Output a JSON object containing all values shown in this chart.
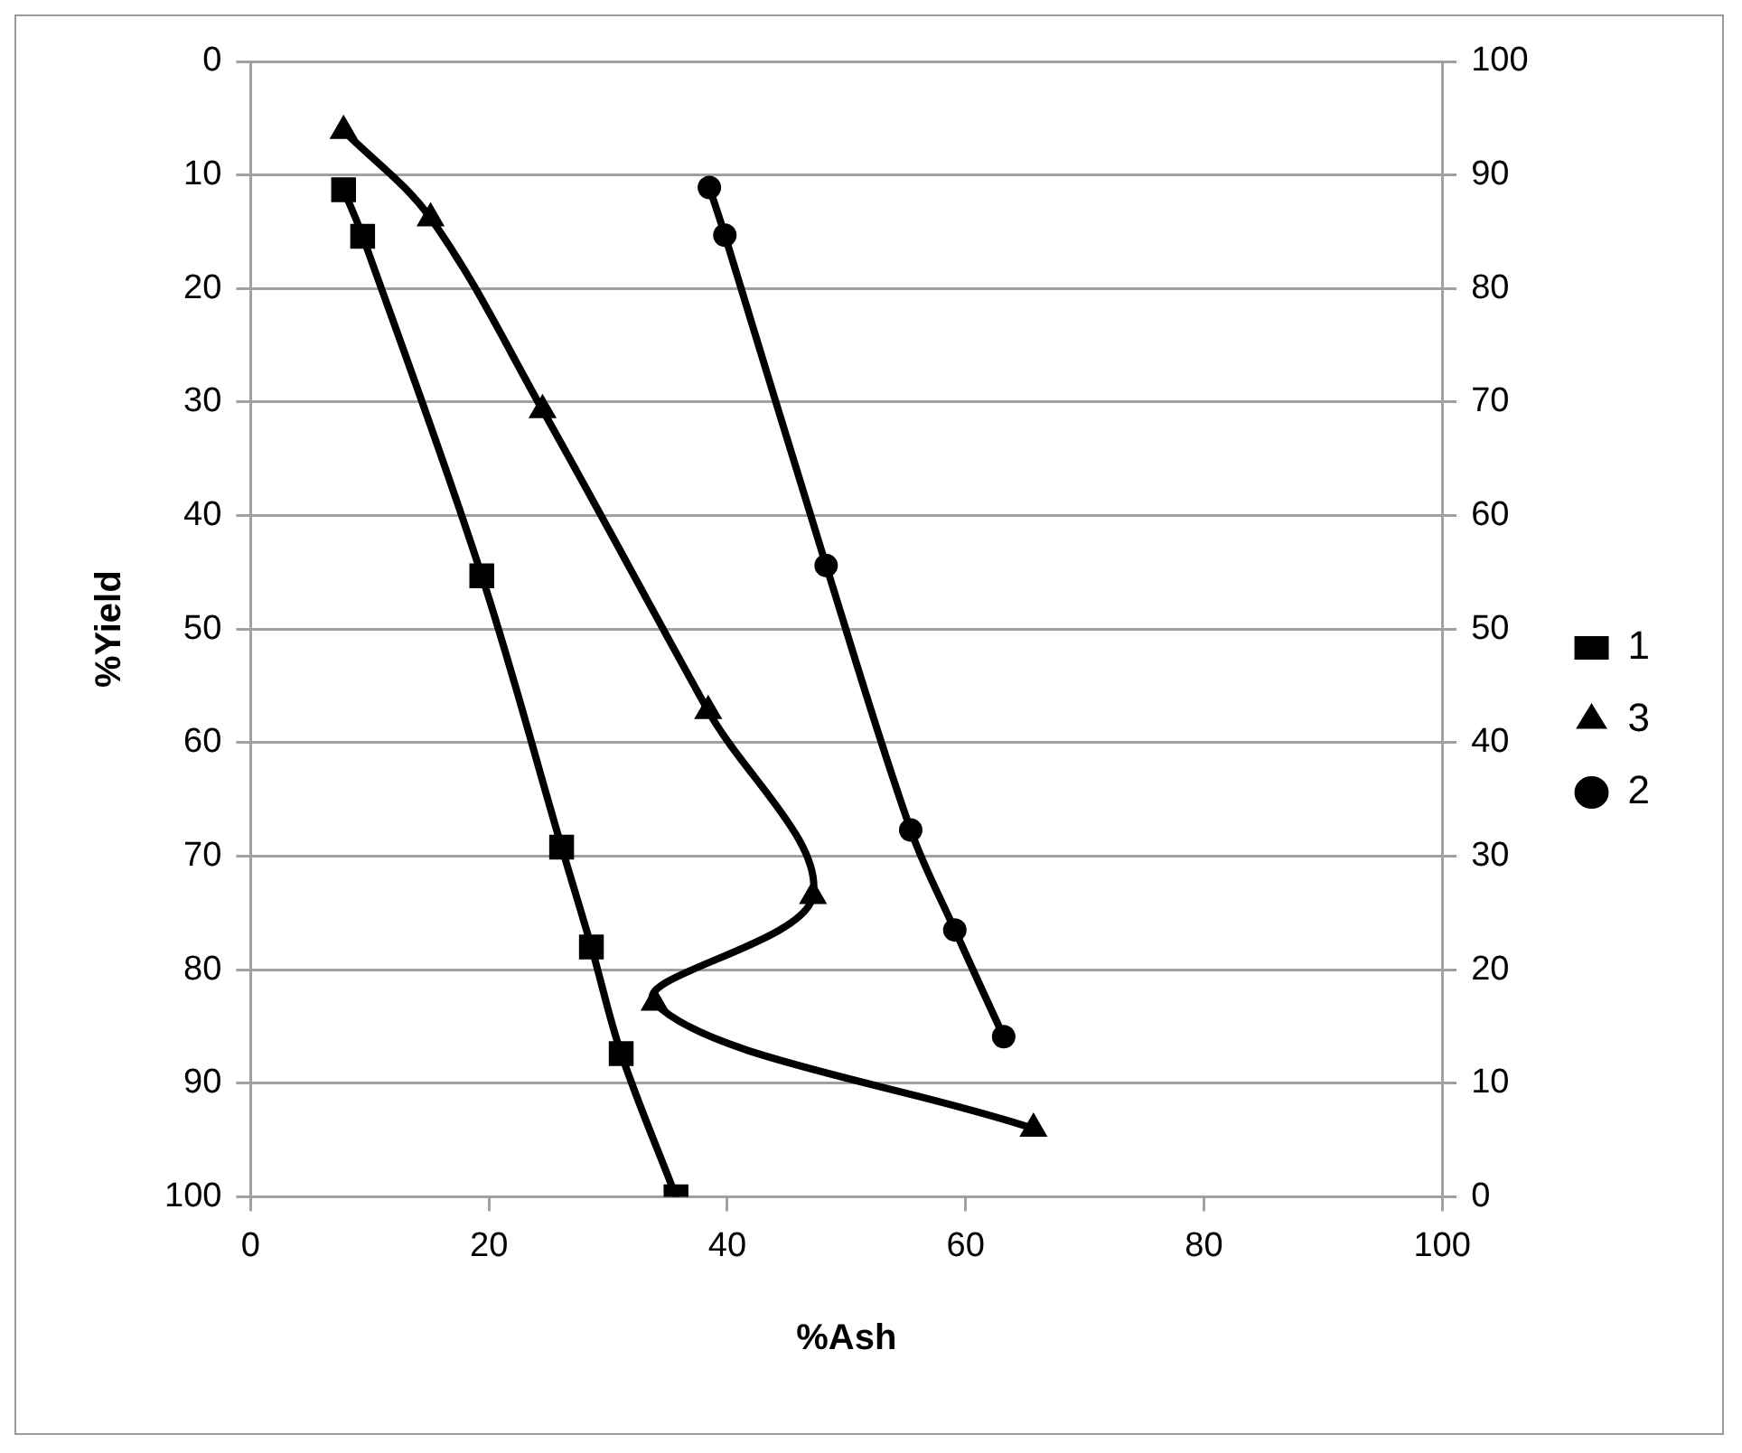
{
  "chart_data": {
    "type": "line",
    "xlabel": "%Ash",
    "ylabel": "%Yield",
    "xlim": [
      0,
      100
    ],
    "xticks": [
      0,
      20,
      40,
      60,
      80,
      100
    ],
    "ylim": [
      100,
      0
    ],
    "yticks": [
      0,
      10,
      20,
      30,
      40,
      50,
      60,
      70,
      80,
      90,
      100
    ],
    "y2lim": [
      0,
      100
    ],
    "y2ticks": [
      0,
      10,
      20,
      30,
      40,
      50,
      60,
      70,
      80,
      90,
      100
    ],
    "grid": "y",
    "legend": "right",
    "line_style": "solid",
    "series": [
      {
        "name": "1",
        "marker": "square",
        "color": "#000000",
        "x": [
          7.8,
          9.4,
          19.4,
          26.1,
          28.6,
          31.1,
          35.7
        ],
        "values": [
          11.3,
          15.4,
          45.3,
          69.2,
          78,
          87.4,
          100
        ]
      },
      {
        "name": "3",
        "marker": "triangle",
        "color": "#000000",
        "x": [
          7.8,
          15.1,
          24.5,
          38.4,
          47.2,
          33.9,
          65.7
        ],
        "values": [
          6.1,
          13.8,
          30.7,
          57.2,
          73.5,
          82.9,
          94
        ]
      },
      {
        "name": "2",
        "marker": "circle",
        "color": "#000000",
        "x": [
          38.5,
          39.8,
          48.3,
          55.4,
          59.1,
          63.2
        ],
        "values": [
          11.1,
          15.3,
          44.4,
          67.7,
          76.5,
          85.9
        ]
      }
    ]
  }
}
